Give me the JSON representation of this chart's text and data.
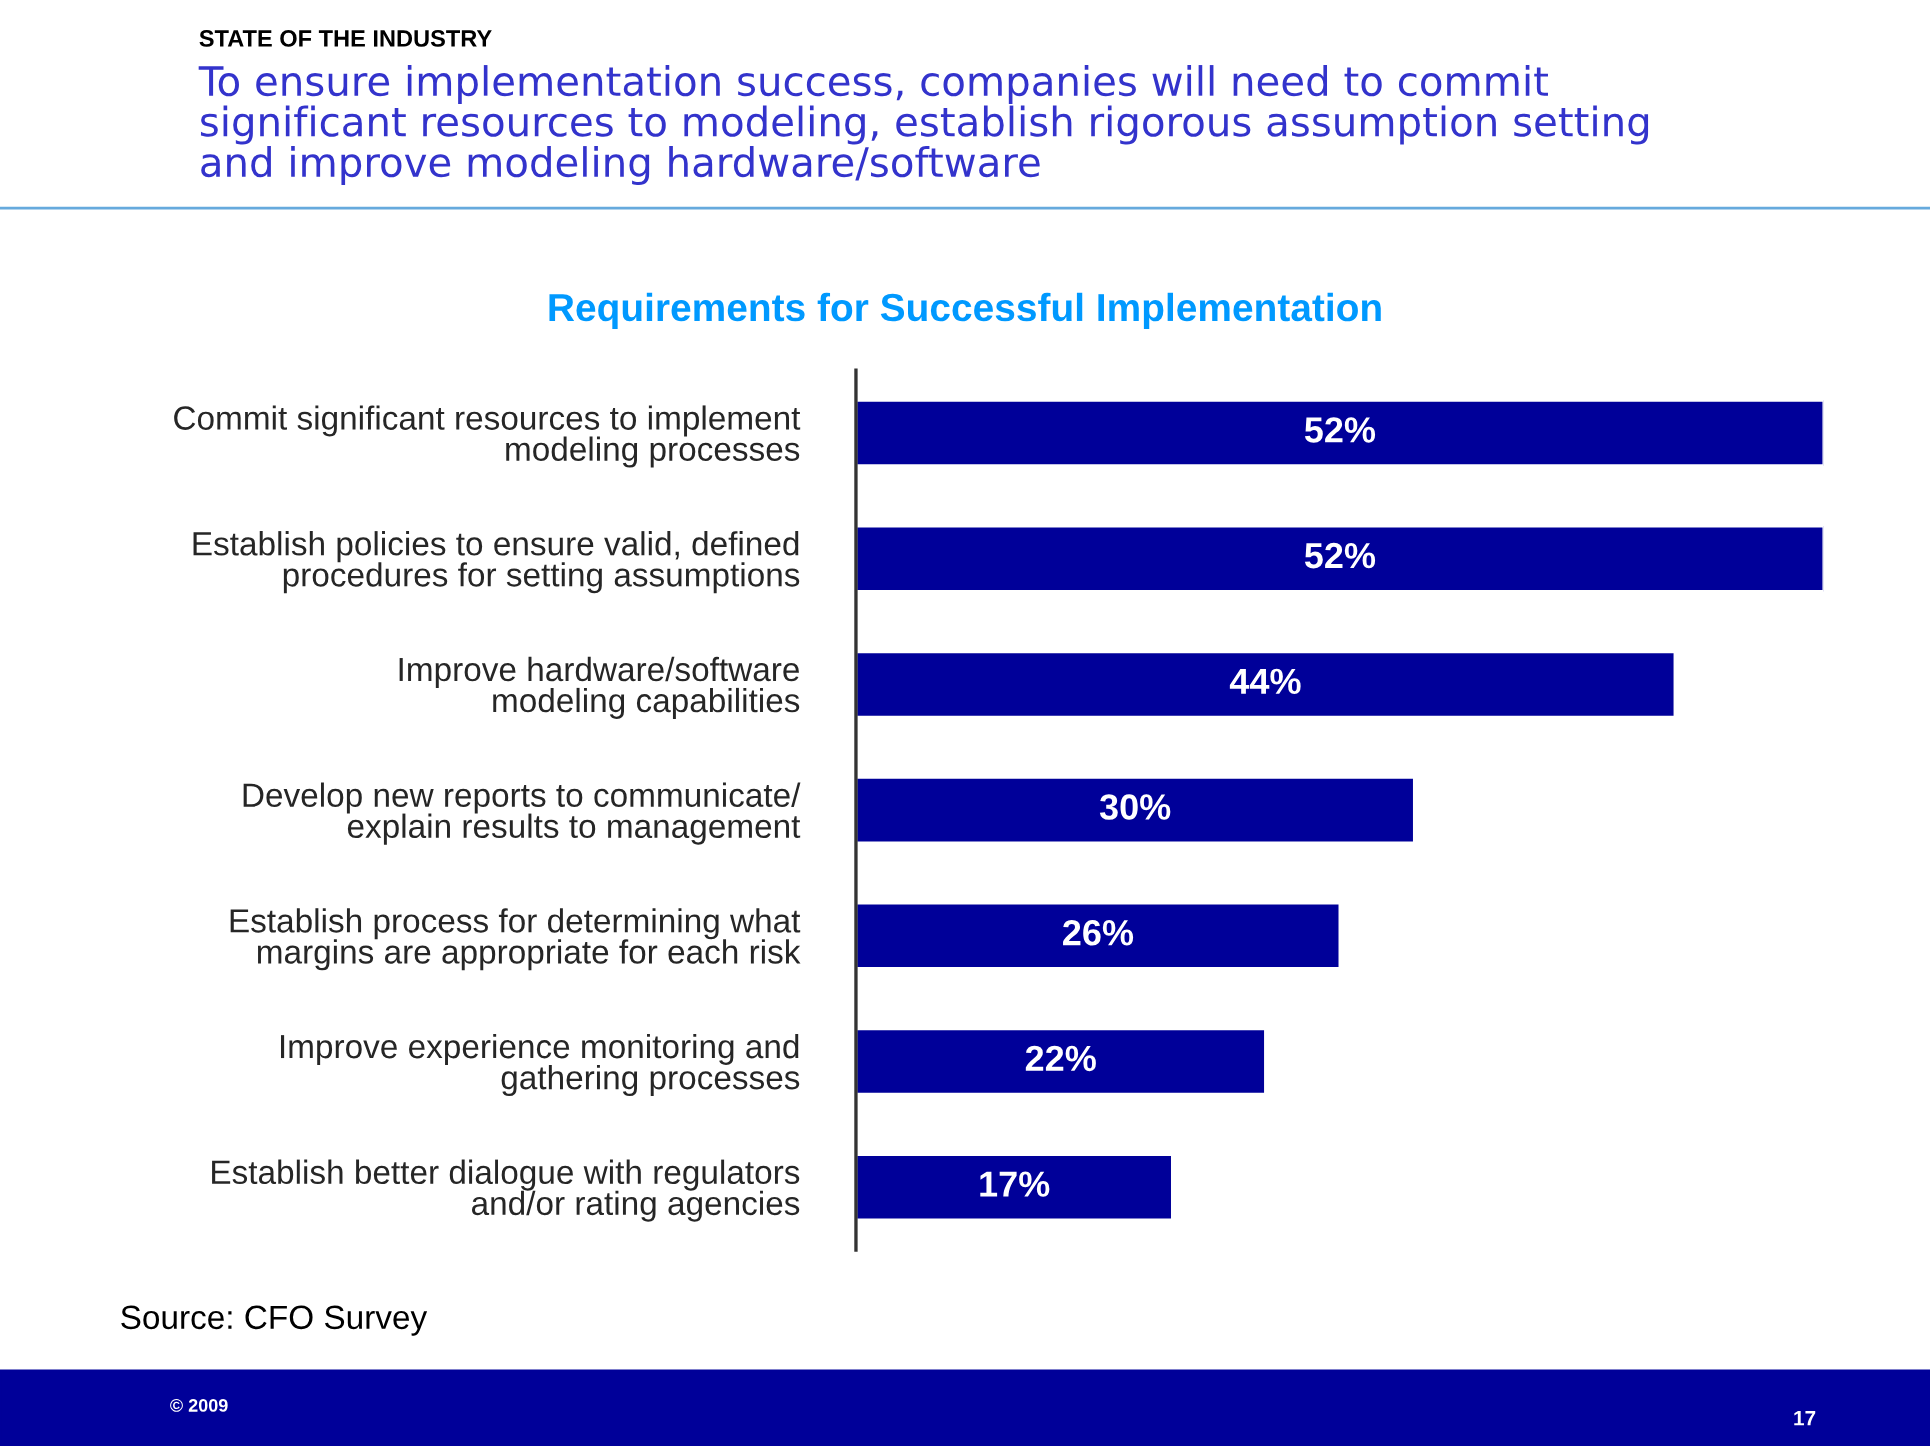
{
  "chart_data": {
    "type": "bar",
    "orientation": "horizontal",
    "title": "Requirements for Successful Implementation",
    "subtitle": "To ensure implementation success, companies will need to commit\nsignificant resources to modeling, establish rigorous assumption setting\nand improve modeling hardware/software",
    "categories": [
      "Commit significant resources to implement\nmodeling processes",
      "Establish policies to ensure valid, defined\nprocedures for setting assumptions",
      "Improve hardware/software\nmodeling capabilities",
      "Develop new reports to communicate/\nexplain results to management",
      "Establish process for determining what\nmargins are appropriate for each risk",
      "Improve experience monitoring and\ngathering processes",
      "Establish better dialogue with regulators\nand/or rating agencies"
    ],
    "values": [
      52,
      52,
      44,
      30,
      26,
      22,
      17
    ],
    "value_labels": [
      "52%",
      "52%",
      "44%",
      "30%",
      "26%",
      "22%",
      "17%"
    ],
    "color": "#000099",
    "tick_labels": "y",
    "grid": false,
    "legend": false,
    "annotations": [
      "STATE OF THE INDUSTRY",
      "Source: CFO Survey",
      "© 2009",
      "17"
    ]
  }
}
